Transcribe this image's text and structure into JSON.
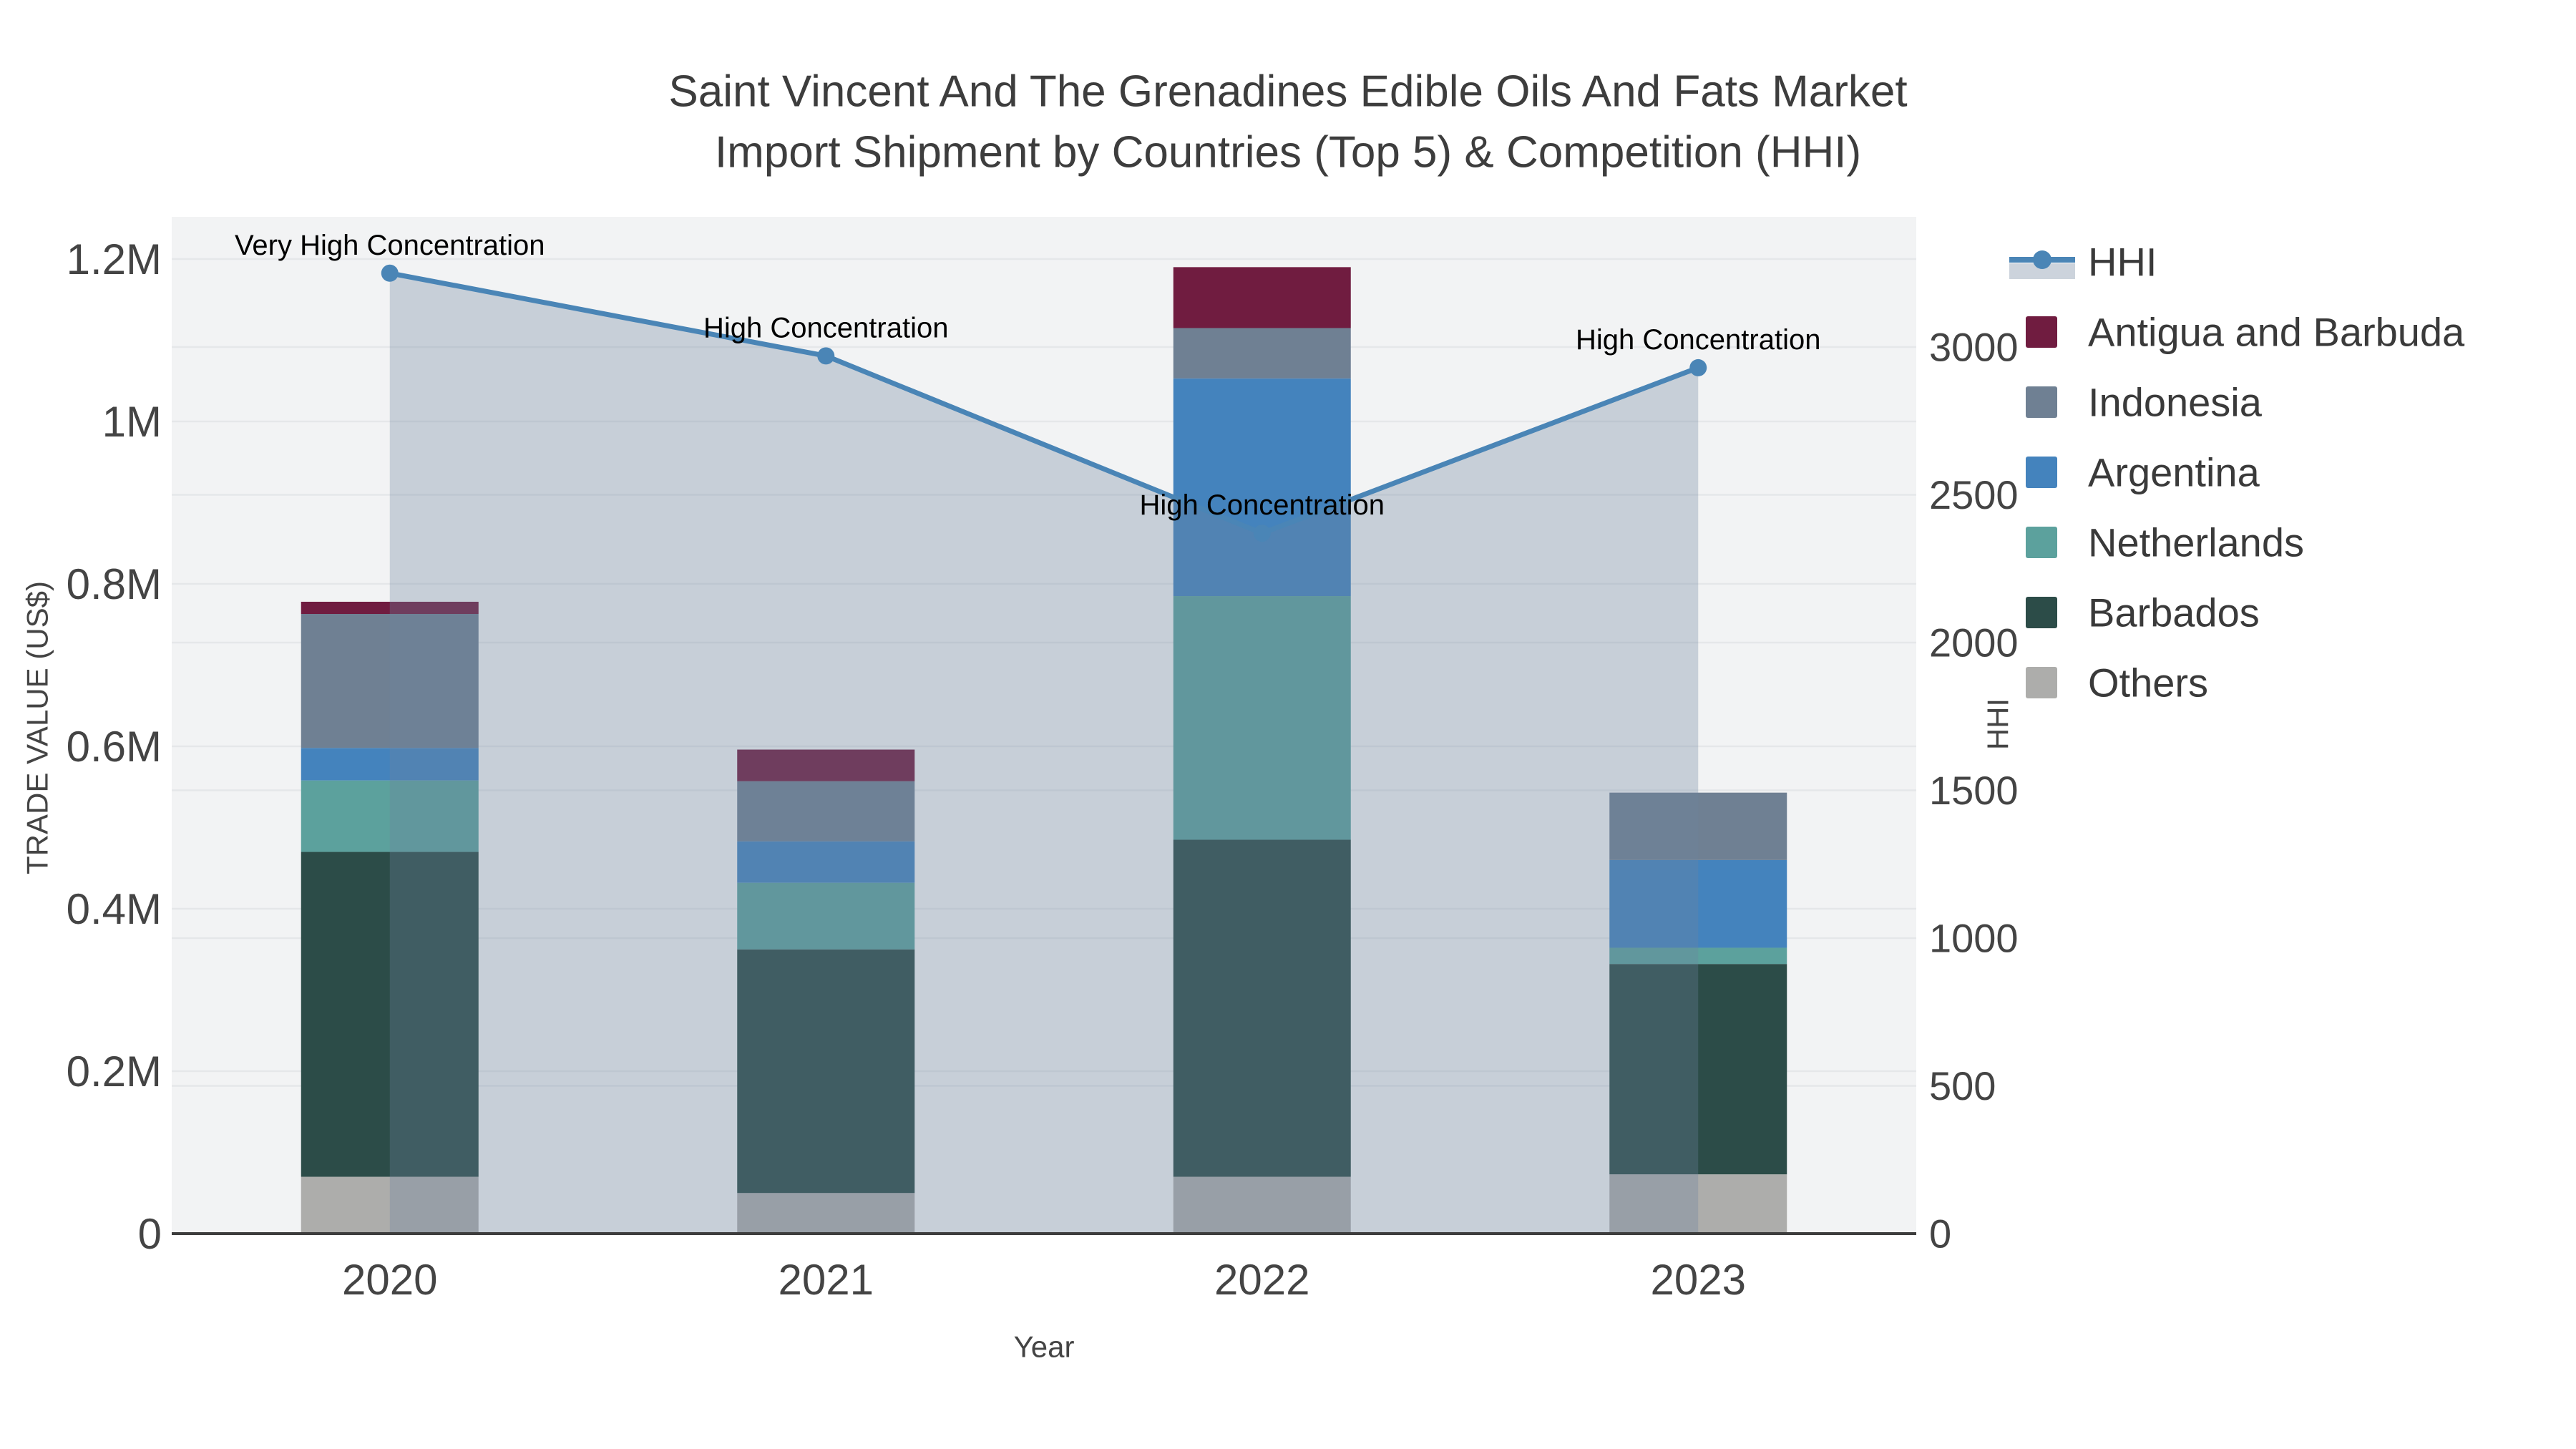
{
  "title": {
    "line1": "Saint Vincent And The Grenadines Edible Oils And Fats Market",
    "line2": "Import Shipment by Countries (Top 5) & Competition (HHI)"
  },
  "axes": {
    "x": {
      "title": "Year",
      "categories": [
        "2020",
        "2021",
        "2022",
        "2023"
      ]
    },
    "y_left": {
      "title": "TRADE VALUE (US$)",
      "tick_labels": [
        "0",
        "0.2M",
        "0.4M",
        "0.6M",
        "0.8M",
        "1M",
        "1.2M"
      ],
      "tick_values": [
        0,
        200000,
        400000,
        600000,
        800000,
        1000000,
        1200000
      ],
      "range": [
        0,
        1260000
      ]
    },
    "y_right": {
      "title": "HHI",
      "tick_labels": [
        "0",
        "500",
        "1000",
        "1500",
        "2000",
        "2500",
        "3000"
      ],
      "tick_values": [
        0,
        500,
        1000,
        1500,
        2000,
        2500,
        3000
      ],
      "range": [
        0,
        3440
      ]
    }
  },
  "legend": {
    "items": [
      {
        "label": "HHI",
        "type": "line",
        "color": "#4a85b6",
        "band_color": "#ccd3dc"
      },
      {
        "label": "Antigua and Barbuda",
        "type": "swatch",
        "color": "#701c40"
      },
      {
        "label": "Indonesia",
        "type": "swatch",
        "color": "#6f8093"
      },
      {
        "label": "Argentina",
        "type": "swatch",
        "color": "#4483bd"
      },
      {
        "label": "Netherlands",
        "type": "swatch",
        "color": "#5ca19d"
      },
      {
        "label": "Barbados",
        "type": "swatch",
        "color": "#2c4c48"
      },
      {
        "label": "Others",
        "type": "swatch",
        "color": "#adadab"
      }
    ]
  },
  "colors": {
    "plot_background": "#f2f3f4",
    "gridline": "#e5e7e9",
    "axis_line": "#3d3d3d",
    "hhi_line": "#4a85b6",
    "hhi_area_fill": "rgba(110,130,158,0.32)"
  },
  "chart_data": {
    "type": "bar+line",
    "categories": [
      "2020",
      "2021",
      "2022",
      "2023"
    ],
    "bar_stack_order": "bottom-to-top",
    "bar_value_unit": "US$",
    "bar_series": [
      {
        "name": "Others",
        "color": "#adadab",
        "values": [
          70000,
          50000,
          70000,
          73000
        ]
      },
      {
        "name": "Barbados",
        "color": "#2c4c48",
        "values": [
          400000,
          300000,
          415000,
          259000
        ]
      },
      {
        "name": "Netherlands",
        "color": "#5ca19d",
        "values": [
          88000,
          82000,
          300000,
          20000
        ]
      },
      {
        "name": "Argentina",
        "color": "#4483bd",
        "values": [
          40000,
          51000,
          268000,
          108000
        ]
      },
      {
        "name": "Indonesia",
        "color": "#6f8093",
        "values": [
          165000,
          74000,
          62000,
          83000
        ]
      },
      {
        "name": "Antigua and Barbuda",
        "color": "#701c40",
        "values": [
          15000,
          39000,
          75000,
          0
        ]
      }
    ],
    "line_series": {
      "name": "HHI",
      "axis": "right",
      "color": "#4a85b6",
      "area_fill": "rgba(110,130,158,0.32)",
      "values": [
        3250,
        2970,
        2370,
        2930
      ]
    },
    "annotations": [
      {
        "category": "2020",
        "text": "Very High Concentration"
      },
      {
        "category": "2021",
        "text": "High Concentration"
      },
      {
        "category": "2022",
        "text": "High Concentration"
      },
      {
        "category": "2023",
        "text": "High Concentration"
      }
    ],
    "title": "Saint Vincent And The Grenadines Edible Oils And Fats Market Import Shipment by Countries (Top 5) & Competition (HHI)",
    "xlabel": "Year",
    "ylabel_left": "TRADE VALUE (US$)",
    "ylabel_right": "HHI",
    "grid": true,
    "legend_position": "right"
  }
}
